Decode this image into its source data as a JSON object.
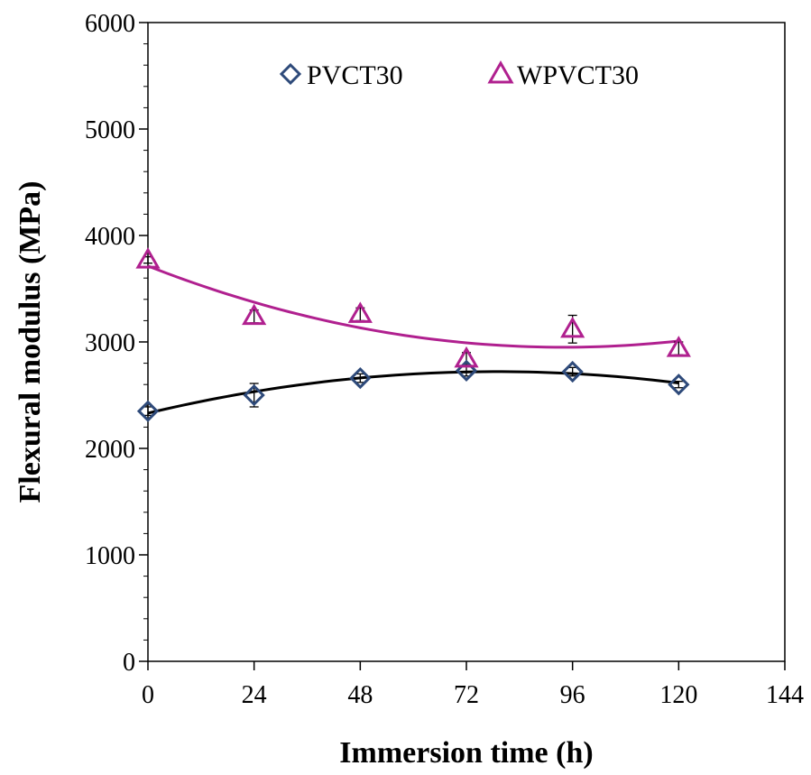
{
  "chart_data": {
    "type": "scatter",
    "xlabel": "Immersion time (h)",
    "ylabel": "Flexural modulus (MPa)",
    "xlim": [
      0,
      144
    ],
    "ylim": [
      0,
      6000
    ],
    "xticks": [
      0,
      24,
      48,
      72,
      96,
      120,
      144
    ],
    "yticks": [
      0,
      1000,
      2000,
      3000,
      4000,
      5000,
      6000
    ],
    "grid": false,
    "legend_position": "top",
    "x": [
      0,
      24,
      48,
      72,
      96,
      120
    ],
    "series": [
      {
        "name": "PVCT30",
        "marker": "diamond",
        "color": "#2e4a7a",
        "trend_color": "#000000",
        "values": [
          2350,
          2500,
          2660,
          2730,
          2720,
          2600
        ],
        "errors": [
          40,
          110,
          40,
          50,
          40,
          30
        ],
        "trendline": "polynomial-2"
      },
      {
        "name": "WPVCT30",
        "marker": "triangle",
        "color": "#b0208f",
        "trend_color": "#b0208f",
        "values": [
          3770,
          3240,
          3260,
          2840,
          3120,
          2940
        ],
        "errors": [
          30,
          60,
          60,
          60,
          130,
          60
        ],
        "trendline": "polynomial-2"
      }
    ]
  }
}
